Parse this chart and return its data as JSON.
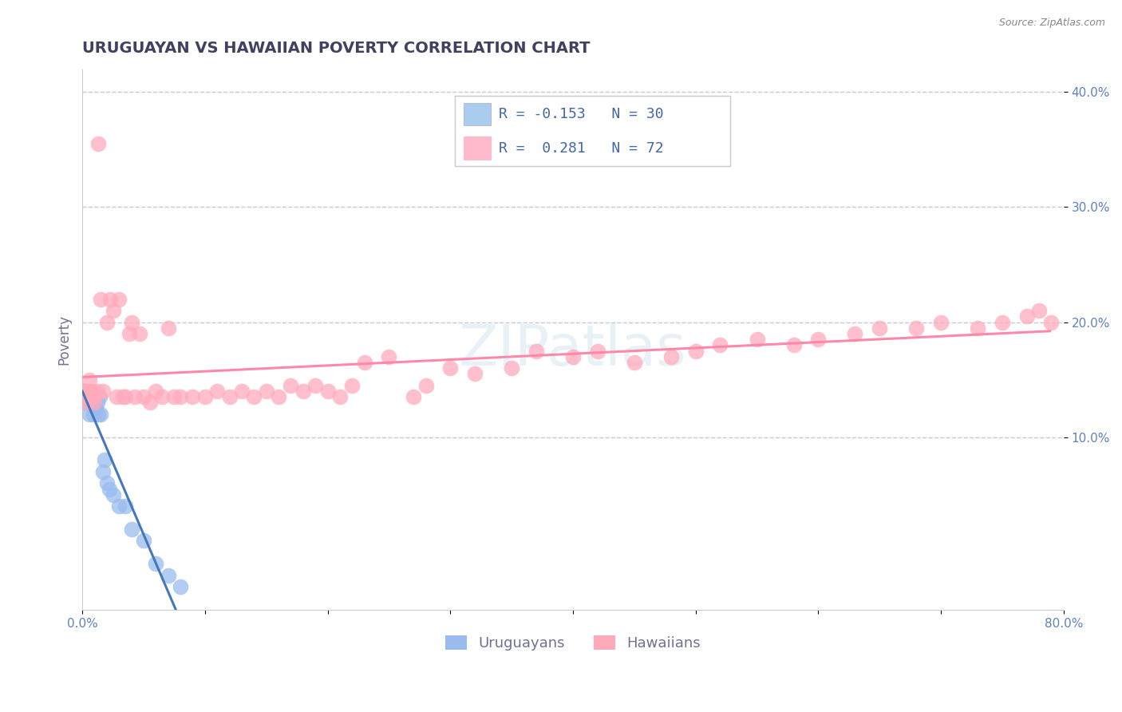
{
  "title": "URUGUAYAN VS HAWAIIAN POVERTY CORRELATION CHART",
  "source_text": "Source: ZipAtlas.com",
  "ylabel": "Poverty",
  "xlim": [
    0.0,
    0.8
  ],
  "ylim": [
    -0.05,
    0.42
  ],
  "xticks": [
    0.0,
    0.1,
    0.2,
    0.3,
    0.4,
    0.5,
    0.6,
    0.7,
    0.8
  ],
  "xticklabels": [
    "0.0%",
    "",
    "",
    "",
    "",
    "",
    "",
    "",
    "80.0%"
  ],
  "yticks": [
    0.1,
    0.2,
    0.3,
    0.4
  ],
  "yticklabels": [
    "10.0%",
    "20.0%",
    "30.0%",
    "40.0%"
  ],
  "grid_color": "#c8c8dc",
  "grid_style": "--",
  "background_color": "#ffffff",
  "title_color": "#404060",
  "title_fontsize": 14,
  "axis_label_color": "#707090",
  "tick_label_color": "#6080c0",
  "uruguayan_color": "#99bbee",
  "hawaiian_color": "#ffaabb",
  "uruguayan_line_color": "#4477bb",
  "hawaiian_line_color": "#ff88aa",
  "legend_uruguayan_color": "#aaccee",
  "legend_hawaiian_color": "#ffbbcc",
  "R_uruguayan": -0.153,
  "N_uruguayan": 30,
  "R_hawaiian": 0.281,
  "N_hawaiian": 72,
  "uruguayan_x": [
    0.001,
    0.002,
    0.003,
    0.004,
    0.005,
    0.006,
    0.007,
    0.008,
    0.009,
    0.01,
    0.011,
    0.012,
    0.013,
    0.014,
    0.015,
    0.017,
    0.018,
    0.02,
    0.022,
    0.025,
    0.03,
    0.035,
    0.04,
    0.05,
    0.06,
    0.07,
    0.08,
    0.001,
    0.002,
    0.003
  ],
  "uruguayan_y": [
    0.13,
    0.14,
    0.135,
    0.13,
    0.135,
    0.12,
    0.13,
    0.135,
    0.12,
    0.13,
    0.125,
    0.13,
    0.12,
    0.135,
    0.12,
    0.07,
    0.08,
    0.06,
    0.055,
    0.05,
    0.04,
    0.04,
    0.02,
    0.01,
    -0.01,
    -0.02,
    -0.03,
    0.14,
    0.14,
    0.14
  ],
  "hawaiian_x": [
    0.001,
    0.002,
    0.003,
    0.004,
    0.005,
    0.006,
    0.007,
    0.008,
    0.009,
    0.01,
    0.012,
    0.013,
    0.015,
    0.017,
    0.02,
    0.023,
    0.025,
    0.028,
    0.03,
    0.033,
    0.035,
    0.038,
    0.04,
    0.043,
    0.047,
    0.05,
    0.055,
    0.06,
    0.065,
    0.07,
    0.075,
    0.08,
    0.09,
    0.1,
    0.11,
    0.12,
    0.13,
    0.14,
    0.15,
    0.16,
    0.17,
    0.18,
    0.19,
    0.2,
    0.21,
    0.22,
    0.23,
    0.25,
    0.27,
    0.28,
    0.3,
    0.32,
    0.35,
    0.37,
    0.4,
    0.42,
    0.45,
    0.48,
    0.5,
    0.52,
    0.55,
    0.58,
    0.6,
    0.63,
    0.65,
    0.68,
    0.7,
    0.73,
    0.75,
    0.77,
    0.78,
    0.79
  ],
  "hawaiian_y": [
    0.14,
    0.135,
    0.13,
    0.14,
    0.135,
    0.15,
    0.14,
    0.14,
    0.135,
    0.13,
    0.14,
    0.355,
    0.22,
    0.14,
    0.2,
    0.22,
    0.21,
    0.135,
    0.22,
    0.135,
    0.135,
    0.19,
    0.2,
    0.135,
    0.19,
    0.135,
    0.13,
    0.14,
    0.135,
    0.195,
    0.135,
    0.135,
    0.135,
    0.135,
    0.14,
    0.135,
    0.14,
    0.135,
    0.14,
    0.135,
    0.145,
    0.14,
    0.145,
    0.14,
    0.135,
    0.145,
    0.165,
    0.17,
    0.135,
    0.145,
    0.16,
    0.155,
    0.16,
    0.175,
    0.17,
    0.175,
    0.165,
    0.17,
    0.175,
    0.18,
    0.185,
    0.18,
    0.185,
    0.19,
    0.195,
    0.195,
    0.2,
    0.195,
    0.2,
    0.205,
    0.21,
    0.2
  ],
  "zipcode_watermark": "ZIPatlas",
  "legend_entries": [
    {
      "label": "Uruguayans",
      "color": "#aaccee"
    },
    {
      "label": "Hawaiians",
      "color": "#ffbbcc"
    }
  ]
}
